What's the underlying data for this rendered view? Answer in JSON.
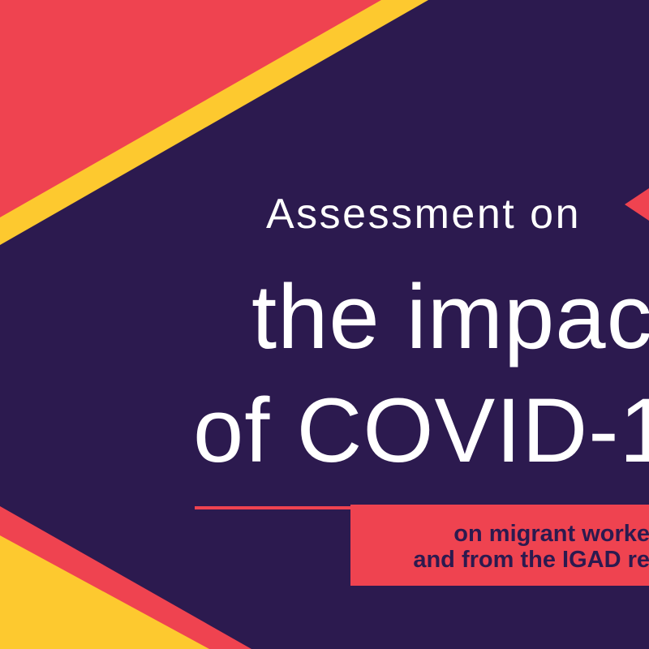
{
  "title": {
    "line1": "Assessment on",
    "line2": "the impac",
    "line3": "of COVID-1"
  },
  "subtitle": {
    "line1": "on migrant worke",
    "line2": "and from the IGAD re"
  },
  "colors": {
    "background": "#2c1a4f",
    "red": "#ef4350",
    "yellow": "#fdc92f",
    "text": "#ffffff"
  }
}
